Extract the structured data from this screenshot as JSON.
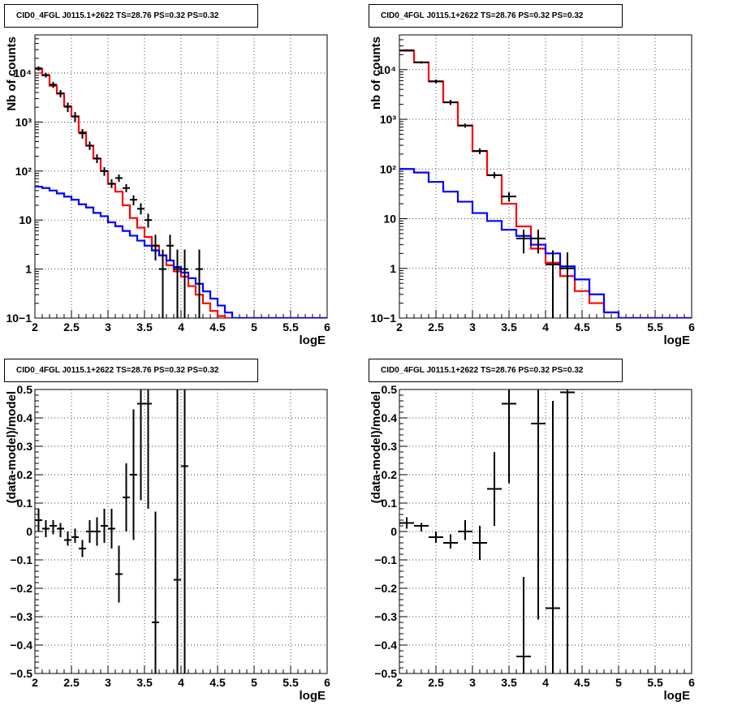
{
  "chart_data": [
    {
      "type": "line",
      "title": "CID0_4FGL J0115.1+2622 TS=28.76 PS=0.32 PS=0.32",
      "xlabel": "logE",
      "ylabel": "Nb of counts",
      "xlim": [
        2,
        6
      ],
      "ylim": [
        0.1,
        60000
      ],
      "yscale": "log",
      "grid": true,
      "x_ticks": [
        "2",
        "2.5",
        "3",
        "3.5",
        "4",
        "4.5",
        "5",
        "5.5",
        "6"
      ],
      "y_ticks": [
        "10−1",
        "1",
        "10",
        "10²",
        "10³",
        "10⁴"
      ],
      "bin_edges": [
        2.0,
        2.1,
        2.2,
        2.3,
        2.4,
        2.5,
        2.6,
        2.7,
        2.8,
        2.9,
        3.0,
        3.1,
        3.2,
        3.3,
        3.4,
        3.5,
        3.6,
        3.7,
        3.8,
        3.9,
        4.0,
        4.1,
        4.2,
        4.3,
        4.4,
        4.5,
        4.6,
        4.7,
        4.8,
        4.9,
        5.0,
        5.1,
        5.2,
        5.3,
        5.4,
        5.5,
        5.6,
        5.7,
        5.8,
        5.9,
        6.0
      ],
      "series": [
        {
          "color": "#ff0000",
          "style": "step",
          "values": [
            12000,
            9000,
            5500,
            3800,
            2100,
            1300,
            620,
            330,
            180,
            100,
            55,
            38,
            20,
            11,
            7,
            4.5,
            3,
            1.9,
            1.2,
            0.9,
            0.7,
            0.45,
            0.3,
            0.2,
            0.14,
            0.11,
            0.1,
            0.1,
            0.1,
            0.1,
            0.1,
            0.1,
            0.1,
            0.1,
            0.1,
            0.1,
            0.1,
            0.1,
            0.1,
            0.1
          ]
        },
        {
          "color": "#0000ff",
          "style": "step",
          "values": [
            48,
            45,
            40,
            35,
            30,
            26,
            21,
            18,
            14,
            12,
            9,
            7.5,
            6,
            4.8,
            3.8,
            3,
            2.4,
            1.9,
            1.5,
            1.1,
            0.85,
            0.65,
            0.5,
            0.35,
            0.25,
            0.18,
            0.13,
            0.1,
            0.1,
            0.1,
            0.1,
            0.1,
            0.1,
            0.1,
            0.1,
            0.1,
            0.1,
            0.1,
            0.1,
            0.1
          ]
        }
      ],
      "data_points": [
        {
          "x": 2.05,
          "y": 12500,
          "lo": 11300,
          "hi": 13700
        },
        {
          "x": 2.15,
          "y": 9100,
          "lo": 8100,
          "hi": 10100
        },
        {
          "x": 2.25,
          "y": 5800,
          "lo": 5000,
          "hi": 6600
        },
        {
          "x": 2.35,
          "y": 3850,
          "lo": 3200,
          "hi": 4500
        },
        {
          "x": 2.45,
          "y": 2050,
          "lo": 1600,
          "hi": 2500
        },
        {
          "x": 2.55,
          "y": 1300,
          "lo": 1000,
          "hi": 1600
        },
        {
          "x": 2.65,
          "y": 590,
          "lo": 460,
          "hi": 720
        },
        {
          "x": 2.75,
          "y": 330,
          "lo": 270,
          "hi": 400
        },
        {
          "x": 2.85,
          "y": 180,
          "lo": 145,
          "hi": 220
        },
        {
          "x": 2.95,
          "y": 100,
          "lo": 80,
          "hi": 120
        },
        {
          "x": 3.05,
          "y": 55,
          "lo": 45,
          "hi": 68
        },
        {
          "x": 3.15,
          "y": 72,
          "lo": 60,
          "hi": 85
        },
        {
          "x": 3.25,
          "y": 45,
          "lo": 37,
          "hi": 54
        },
        {
          "x": 3.35,
          "y": 26,
          "lo": 20,
          "hi": 32
        },
        {
          "x": 3.45,
          "y": 17,
          "lo": 13,
          "hi": 22
        },
        {
          "x": 3.55,
          "y": 10,
          "lo": 7,
          "hi": 13.5
        },
        {
          "x": 3.65,
          "y": 3,
          "lo": 1.5,
          "hi": 5
        },
        {
          "x": 3.75,
          "y": 1,
          "lo": 0.1,
          "hi": 2.5
        },
        {
          "x": 3.85,
          "y": 3,
          "lo": 1.5,
          "hi": 5
        },
        {
          "x": 3.95,
          "y": 1,
          "lo": 0.1,
          "hi": 2.5
        },
        {
          "x": 4.05,
          "y": 1,
          "lo": 0.1,
          "hi": 2.5
        },
        {
          "x": 4.25,
          "y": 1,
          "lo": 0.1,
          "hi": 2.5
        }
      ]
    },
    {
      "type": "line",
      "title": "CID0_4FGL J0115.1+2622 TS=28.76 PS=0.32 PS=0.32",
      "xlabel": "logE",
      "ylabel": "nb of counts",
      "xlim": [
        2,
        6
      ],
      "ylim": [
        0.1,
        50000
      ],
      "yscale": "log",
      "grid": true,
      "x_ticks": [
        "2",
        "2.5",
        "3",
        "3.5",
        "4",
        "4.5",
        "5",
        "5.5",
        "6"
      ],
      "y_ticks": [
        "10−1",
        "1",
        "10",
        "10²",
        "10³",
        "10⁴"
      ],
      "bin_edges": [
        2.0,
        2.2,
        2.4,
        2.6,
        2.8,
        3.0,
        3.2,
        3.4,
        3.6,
        3.8,
        4.0,
        4.2,
        4.4,
        4.6,
        4.8,
        5.0,
        5.2,
        5.4,
        5.6,
        5.8,
        6.0
      ],
      "series": [
        {
          "color": "#ff0000",
          "style": "step",
          "values": [
            24000,
            14000,
            5800,
            2200,
            750,
            230,
            75,
            20,
            7,
            2.5,
            1.3,
            0.7,
            0.35,
            0.2,
            0.13,
            0.1,
            0.1,
            0.1,
            0.1,
            0.1
          ]
        },
        {
          "color": "#0000ff",
          "style": "step",
          "values": [
            100,
            85,
            55,
            35,
            22,
            13,
            9,
            6,
            4.5,
            3,
            2,
            1.1,
            0.6,
            0.3,
            0.13,
            0.1,
            0.1,
            0.1,
            0.1,
            0.1
          ]
        }
      ],
      "data_points": [
        {
          "x": 2.1,
          "y": 24500,
          "lo": 23500,
          "hi": 25500
        },
        {
          "x": 2.3,
          "y": 14000,
          "lo": 13200,
          "hi": 14800
        },
        {
          "x": 2.5,
          "y": 5800,
          "lo": 5300,
          "hi": 6300
        },
        {
          "x": 2.7,
          "y": 2200,
          "lo": 1950,
          "hi": 2450
        },
        {
          "x": 2.9,
          "y": 750,
          "lo": 680,
          "hi": 820
        },
        {
          "x": 3.1,
          "y": 230,
          "lo": 200,
          "hi": 260
        },
        {
          "x": 3.3,
          "y": 75,
          "lo": 65,
          "hi": 86
        },
        {
          "x": 3.5,
          "y": 28,
          "lo": 22,
          "hi": 34
        },
        {
          "x": 3.7,
          "y": 4,
          "lo": 2,
          "hi": 6
        },
        {
          "x": 3.9,
          "y": 4,
          "lo": 2,
          "hi": 6
        },
        {
          "x": 4.1,
          "y": 1.2,
          "lo": 0.1,
          "hi": 2.3
        },
        {
          "x": 4.3,
          "y": 1,
          "lo": 0.1,
          "hi": 2.1
        }
      ]
    },
    {
      "type": "scatter",
      "title": "CID0_4FGL J0115.1+2622 TS=28.76 PS=0.32 PS=0.32",
      "xlabel": "logE",
      "ylabel": "(data-model)/model",
      "xlim": [
        2,
        6
      ],
      "ylim": [
        -0.5,
        0.5
      ],
      "grid": true,
      "x_ticks": [
        "2",
        "2.5",
        "3",
        "3.5",
        "4",
        "4.5",
        "5",
        "5.5",
        "6"
      ],
      "y_ticks": [
        "−0.5",
        "−0.4",
        "−0.3",
        "−0.2",
        "−0.1",
        "0",
        "0.1",
        "0.2",
        "0.3",
        "0.4",
        "0.5"
      ],
      "data_points": [
        {
          "x": 2.05,
          "y": 0.04,
          "lo": 0.0,
          "hi": 0.08
        },
        {
          "x": 2.15,
          "y": 0.01,
          "lo": -0.02,
          "hi": 0.04
        },
        {
          "x": 2.25,
          "y": 0.02,
          "lo": -0.01,
          "hi": 0.04
        },
        {
          "x": 2.35,
          "y": 0.01,
          "lo": -0.02,
          "hi": 0.03
        },
        {
          "x": 2.45,
          "y": -0.03,
          "lo": -0.05,
          "hi": 0.0
        },
        {
          "x": 2.55,
          "y": -0.02,
          "lo": -0.04,
          "hi": 0.01
        },
        {
          "x": 2.65,
          "y": -0.06,
          "lo": -0.09,
          "hi": -0.03
        },
        {
          "x": 2.75,
          "y": 0.0,
          "lo": -0.04,
          "hi": 0.04
        },
        {
          "x": 2.85,
          "y": 0.0,
          "lo": -0.05,
          "hi": 0.05
        },
        {
          "x": 2.95,
          "y": 0.02,
          "lo": -0.04,
          "hi": 0.08
        },
        {
          "x": 3.05,
          "y": 0.01,
          "lo": -0.06,
          "hi": 0.08
        },
        {
          "x": 3.15,
          "y": -0.15,
          "lo": -0.25,
          "hi": -0.05
        },
        {
          "x": 3.25,
          "y": 0.12,
          "lo": 0.0,
          "hi": 0.24
        },
        {
          "x": 3.35,
          "y": 0.2,
          "lo": -0.03,
          "hi": 0.43
        },
        {
          "x": 3.45,
          "y": 0.45,
          "lo": 0.11,
          "hi": 0.5
        },
        {
          "x": 3.55,
          "y": 0.45,
          "lo": 0.08,
          "hi": 0.5
        },
        {
          "x": 3.65,
          "y": -0.32,
          "lo": -0.5,
          "hi": 0.07
        },
        {
          "x": 3.95,
          "y": -0.17,
          "lo": -0.5,
          "hi": 0.5
        },
        {
          "x": 4.05,
          "y": 0.23,
          "lo": -0.5,
          "hi": 0.5
        }
      ]
    },
    {
      "type": "scatter",
      "title": "CID0_4FGL J0115.1+2622 TS=28.76 PS=0.32 PS=0.32",
      "xlabel": "logE",
      "ylabel": "(data-model)/model",
      "xlim": [
        2,
        6
      ],
      "ylim": [
        -0.5,
        0.5
      ],
      "grid": true,
      "x_ticks": [
        "2",
        "2.5",
        "3",
        "3.5",
        "4",
        "4.5",
        "5",
        "5.5",
        "6"
      ],
      "y_ticks": [
        "−0.5",
        "−0.4",
        "−0.3",
        "−0.2",
        "−0.1",
        "0",
        "0.1",
        "0.2",
        "0.3",
        "0.4",
        "0.5"
      ],
      "data_points": [
        {
          "x": 2.1,
          "y": 0.03,
          "lo": 0.01,
          "hi": 0.05
        },
        {
          "x": 2.3,
          "y": 0.02,
          "lo": 0.0,
          "hi": 0.03
        },
        {
          "x": 2.5,
          "y": -0.02,
          "lo": -0.04,
          "hi": 0.0
        },
        {
          "x": 2.7,
          "y": -0.04,
          "lo": -0.06,
          "hi": -0.01
        },
        {
          "x": 2.9,
          "y": 0.0,
          "lo": -0.03,
          "hi": 0.04
        },
        {
          "x": 3.1,
          "y": -0.04,
          "lo": -0.1,
          "hi": 0.02
        },
        {
          "x": 3.3,
          "y": 0.15,
          "lo": 0.02,
          "hi": 0.28
        },
        {
          "x": 3.5,
          "y": 0.45,
          "lo": 0.17,
          "hi": 0.5
        },
        {
          "x": 3.7,
          "y": -0.44,
          "lo": -0.5,
          "hi": -0.16
        },
        {
          "x": 3.9,
          "y": 0.38,
          "lo": -0.31,
          "hi": 0.5
        },
        {
          "x": 4.1,
          "y": -0.27,
          "lo": -0.5,
          "hi": 0.46
        },
        {
          "x": 4.3,
          "y": 0.49,
          "lo": -0.5,
          "hi": 0.5
        }
      ]
    }
  ]
}
